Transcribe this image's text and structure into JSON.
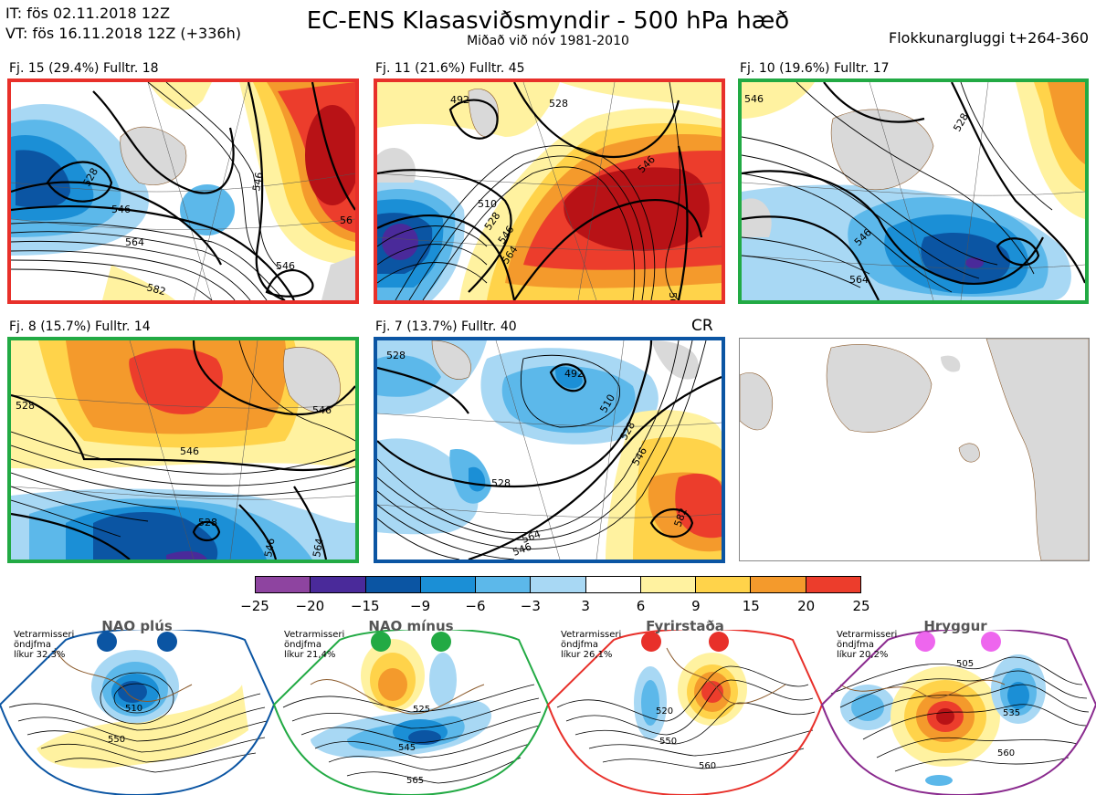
{
  "header": {
    "it_line": "IT: fös 02.11.2018 12Z",
    "vt_line": "VT: fös 16.11.2018 12Z  (+336h)",
    "title": "EC-ENS Klasasviðsmyndir - 500 hPa hæð",
    "subtitle": "Miðað við nóv 1981-2010",
    "window": "Flokkunargluggi t+264-360"
  },
  "panels": [
    {
      "caption": "Fj. 15 (29.4%)   Fulltr. 18",
      "border": "#e8302a"
    },
    {
      "caption": "Fj. 11 (21.6%)   Fulltr. 45",
      "border": "#e8302a"
    },
    {
      "caption": "Fj. 10 (19.6%)   Fulltr. 17",
      "border": "#22aa44"
    },
    {
      "caption": "Fj. 8 (15.7%)   Fulltr. 14",
      "border": "#22aa44"
    },
    {
      "caption": "Fj. 7 (13.7%)   Fulltr. 40",
      "border": "#0b55a3",
      "tag": "CR"
    }
  ],
  "contour_labels": {
    "p1": [
      "546",
      "564",
      "528",
      "546",
      "582",
      "546",
      "56"
    ],
    "p2": [
      "510",
      "528",
      "546",
      "564",
      "546",
      "492",
      "528",
      "56"
    ],
    "p3": [
      "546",
      "564",
      "528",
      "546"
    ],
    "p4": [
      "546",
      "546",
      "528",
      "528",
      "546",
      "564"
    ],
    "p5": [
      "528",
      "492",
      "510",
      "528",
      "546",
      "564",
      "528",
      "546",
      "582"
    ]
  },
  "colorbar": {
    "ticks": [
      "−25",
      "−20",
      "−15",
      "−9",
      "−6",
      "−3",
      "3",
      "6",
      "9",
      "15",
      "20",
      "25"
    ],
    "colors": [
      "#8e44a0",
      "#4a2a9a",
      "#0b55a3",
      "#1b8fd6",
      "#5cb8ea",
      "#a8d8f4",
      "#ffffff",
      "#fff2a0",
      "#ffd34a",
      "#f49a2c",
      "#ec3d2c",
      "#b81216"
    ]
  },
  "regimes": [
    {
      "title": "NAO plús",
      "lines": [
        "Vetrarmisseri",
        "öndjfma",
        "líkur 32,3%"
      ],
      "color": "#0b55a3",
      "dot": "#0b55a3",
      "labels": [
        "510",
        "550"
      ]
    },
    {
      "title": "NAO mínus",
      "lines": [
        "Vetrarmisseri",
        "öndjfma",
        "líkur 21,4%"
      ],
      "color": "#22aa44",
      "dot": "#22aa44",
      "labels": [
        "525",
        "545",
        "565"
      ]
    },
    {
      "title": "Fyrirstaða",
      "lines": [
        "Vetrarmisseri",
        "öndjfma",
        "líkur 26,1%"
      ],
      "color": "#e8302a",
      "dot": "#e8302a",
      "labels": [
        "520",
        "550",
        "560"
      ]
    },
    {
      "title": "Hryggur",
      "lines": [
        "Vetrarmisseri",
        "öndjfma",
        "líkur 20,2%"
      ],
      "color": "#8a2a8e",
      "dot": "#ee66ee",
      "labels": [
        "505",
        "535",
        "560"
      ]
    }
  ]
}
